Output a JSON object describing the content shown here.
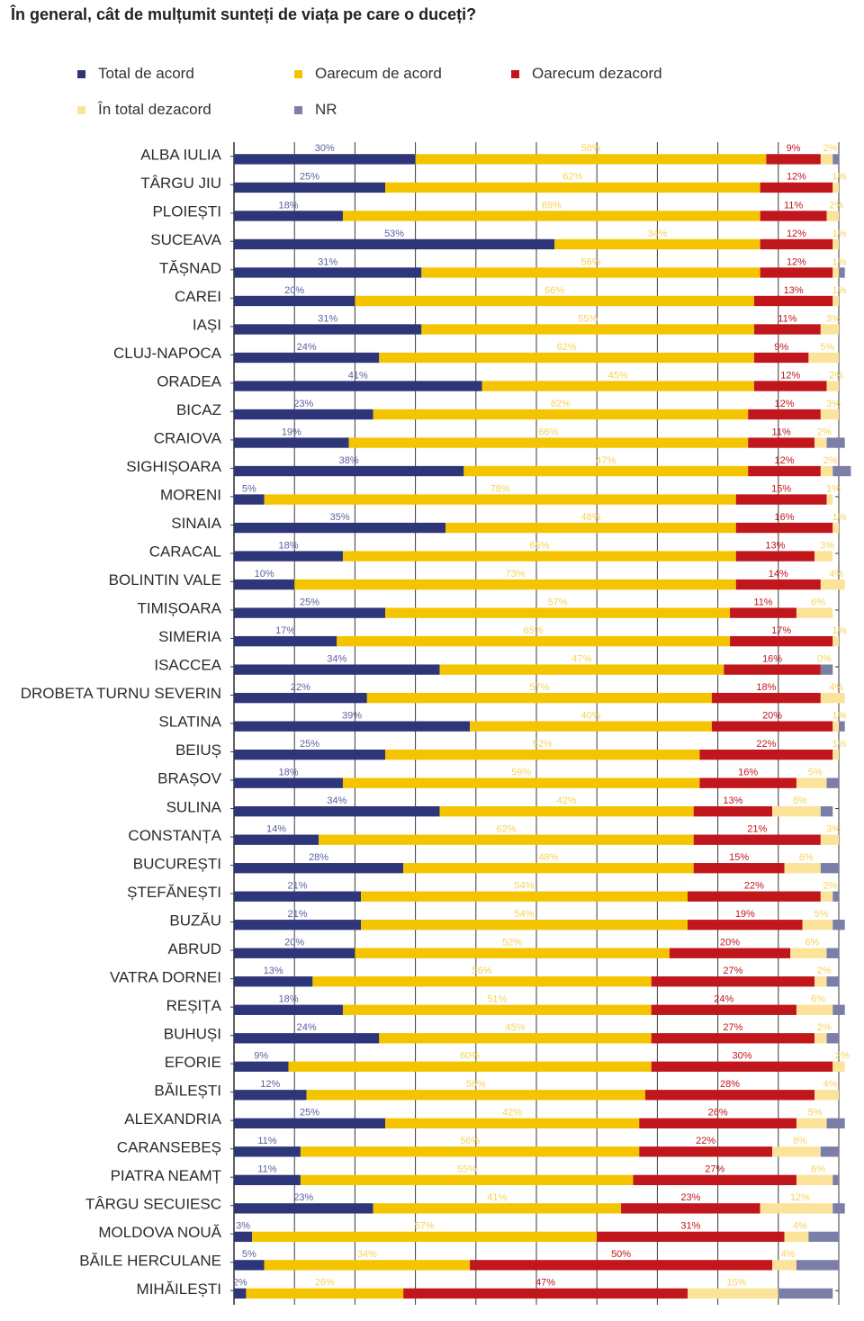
{
  "chart_data": {
    "type": "bar",
    "orientation": "horizontal",
    "stacked": true,
    "title": "În general, cât de mulțumit sunteți de viața pe care o duceți?",
    "xlim": [
      0,
      100
    ],
    "grid": true,
    "legend_position": "top",
    "series": [
      {
        "name": "Total de acord",
        "color": "#2e3579",
        "label_color": "#5a61a0"
      },
      {
        "name": "Oarecum de acord",
        "color": "#f5c400",
        "label_color": "#f6d35a"
      },
      {
        "name": "Oarecum dezacord",
        "color": "#c0161c",
        "label_color": "#c0161c"
      },
      {
        "name": "În total dezacord",
        "color": "#fbe39a",
        "label_color": "#f6d35a"
      },
      {
        "name": "NR",
        "color": "#7b7fa8",
        "label_color": "#7b7fa8"
      }
    ],
    "categories": [
      "ALBA IULIA",
      "TÂRGU JIU",
      "PLOIEȘTI",
      "SUCEAVA",
      "TĂȘNAD",
      "CAREI",
      "IAȘI",
      "CLUJ-NAPOCA",
      "ORADEA",
      "BICAZ",
      "CRAIOVA",
      "SIGHIȘOARA",
      "MORENI",
      "SINAIA",
      "CARACAL",
      "BOLINTIN VALE",
      "TIMIȘOARA",
      "SIMERIA",
      "ISACCEA",
      "DROBETA TURNU SEVERIN",
      "SLATINA",
      "BEIUȘ",
      "BRAȘOV",
      "SULINA",
      "CONSTANȚA",
      "BUCUREȘTI",
      "ȘTEFĂNEȘTI",
      "BUZĂU",
      "ABRUD",
      "VATRA DORNEI",
      "REȘIȚA",
      "BUHUȘI",
      "EFORIE",
      "BĂILEȘTI",
      "ALEXANDRIA",
      "CARANSEBEȘ",
      "PIATRA NEAMȚ",
      "TÂRGU SECUIESC",
      "MOLDOVA NOUĂ",
      "BĂILE HERCULANE",
      "MIHĂILEȘTI"
    ],
    "values": [
      [
        30,
        58,
        9,
        2,
        1
      ],
      [
        25,
        62,
        12,
        1,
        0
      ],
      [
        18,
        69,
        11,
        2,
        0
      ],
      [
        53,
        34,
        12,
        1,
        0
      ],
      [
        31,
        56,
        12,
        1,
        1
      ],
      [
        20,
        66,
        13,
        1,
        0
      ],
      [
        31,
        55,
        11,
        3,
        0
      ],
      [
        24,
        62,
        9,
        5,
        0
      ],
      [
        41,
        45,
        12,
        2,
        0
      ],
      [
        23,
        62,
        12,
        3,
        0
      ],
      [
        19,
        66,
        11,
        2,
        3
      ],
      [
        38,
        47,
        12,
        2,
        3
      ],
      [
        5,
        78,
        15,
        1,
        0
      ],
      [
        35,
        48,
        16,
        1,
        0
      ],
      [
        18,
        65,
        13,
        3,
        0
      ],
      [
        10,
        73,
        14,
        4,
        0
      ],
      [
        25,
        57,
        11,
        6,
        0
      ],
      [
        17,
        65,
        17,
        1,
        0
      ],
      [
        34,
        47,
        16,
        0,
        2
      ],
      [
        22,
        57,
        18,
        4,
        0
      ],
      [
        39,
        40,
        20,
        1,
        1
      ],
      [
        25,
        52,
        22,
        1,
        0
      ],
      [
        18,
        59,
        16,
        5,
        2
      ],
      [
        34,
        42,
        13,
        8,
        2
      ],
      [
        14,
        62,
        21,
        3,
        0
      ],
      [
        28,
        48,
        15,
        6,
        3
      ],
      [
        21,
        54,
        22,
        2,
        1
      ],
      [
        21,
        54,
        19,
        5,
        2
      ],
      [
        20,
        52,
        20,
        6,
        2
      ],
      [
        13,
        56,
        27,
        2,
        2
      ],
      [
        18,
        51,
        24,
        6,
        2
      ],
      [
        24,
        45,
        27,
        2,
        2
      ],
      [
        9,
        60,
        30,
        2,
        0
      ],
      [
        12,
        56,
        28,
        4,
        0
      ],
      [
        25,
        42,
        26,
        5,
        3
      ],
      [
        11,
        56,
        22,
        8,
        3
      ],
      [
        11,
        55,
        27,
        6,
        1
      ],
      [
        23,
        41,
        23,
        12,
        2
      ],
      [
        3,
        57,
        31,
        4,
        5
      ],
      [
        5,
        34,
        50,
        4,
        7
      ],
      [
        2,
        26,
        47,
        15,
        9
      ]
    ]
  }
}
